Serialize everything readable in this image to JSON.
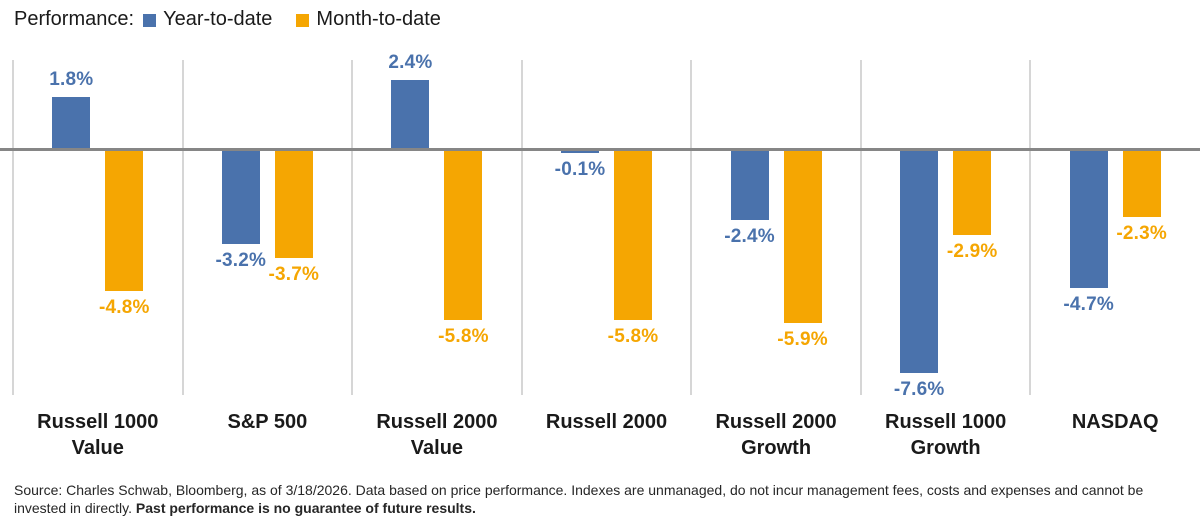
{
  "legend": {
    "title": "Performance:"
  },
  "chart_data": {
    "type": "bar",
    "title": "Performance: Year-to-date vs Month-to-date by index",
    "categories": [
      "Russell 1000\nValue",
      "S&P 500",
      "Russell 2000\nValue",
      "Russell 2000",
      "Russell 2000\nGrowth",
      "Russell 1000\nGrowth",
      "NASDAQ"
    ],
    "series": [
      {
        "name": "Year-to-date",
        "color": "#4A72AC",
        "values": [
          1.8,
          -3.2,
          2.4,
          -0.1,
          -2.4,
          -7.6,
          -4.7
        ]
      },
      {
        "name": "Month-to-date",
        "color": "#F5A602",
        "values": [
          -4.8,
          -3.7,
          -5.8,
          -5.8,
          -5.9,
          -2.9,
          -2.3
        ]
      }
    ],
    "value_label_suffix": "%",
    "ylim": [
      -8.5,
      3.2
    ],
    "grid": "vertical-between-groups-only",
    "legend_position": "top-left",
    "zero_line_color": "#868686",
    "gridline_color": "#D6D6D6"
  },
  "footer": {
    "text": "Source: Charles Schwab, Bloomberg, as of 3/18/2026.  Data based on price performance. Indexes are unmanaged, do not incur management fees, costs and expenses and cannot be invested in directly. ",
    "bold_text": "Past performance is no guarantee of future results."
  }
}
